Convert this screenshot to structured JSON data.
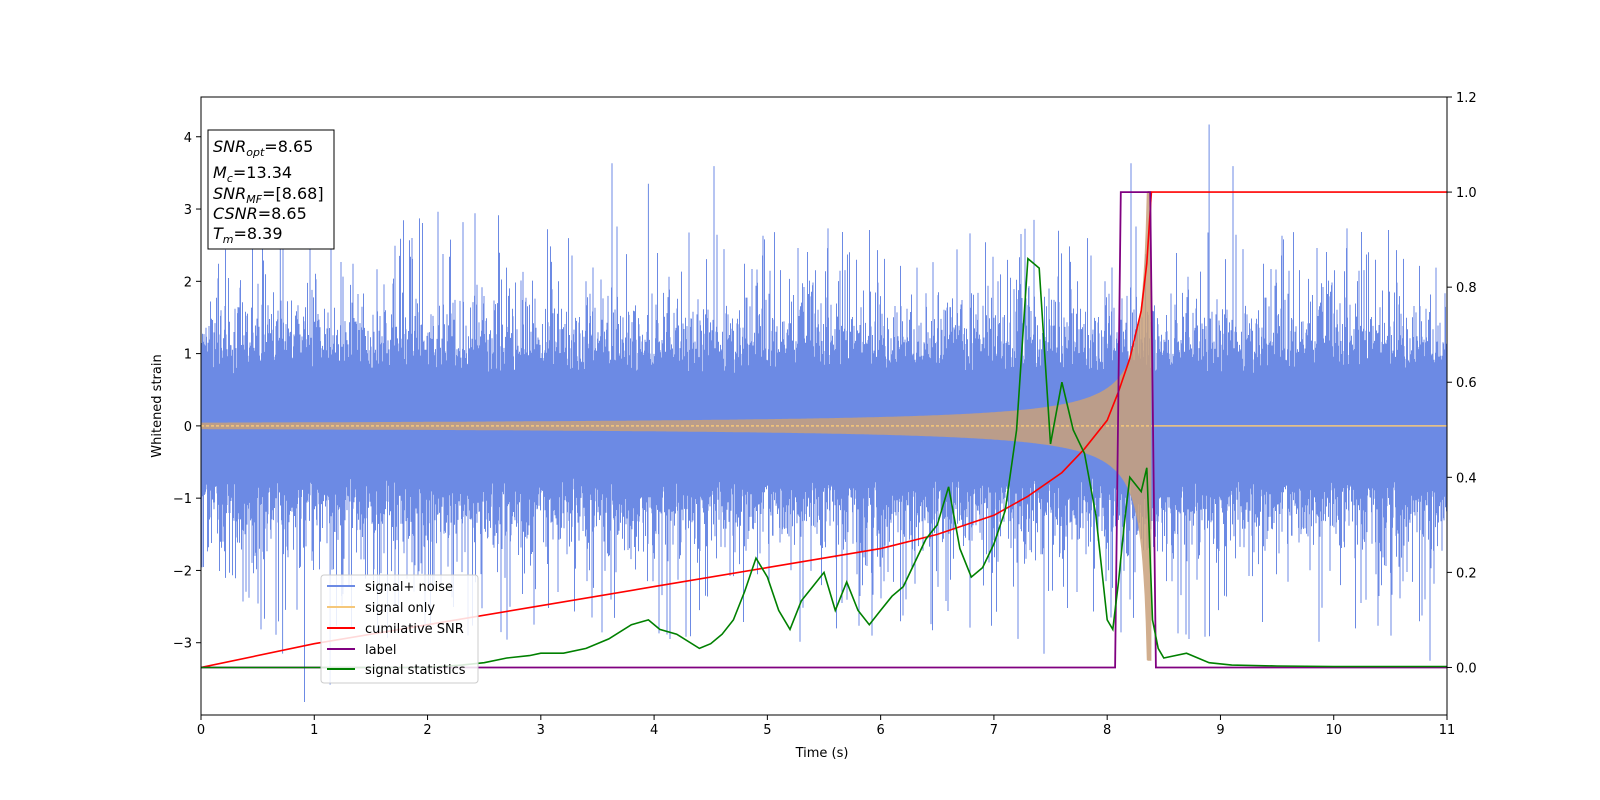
{
  "chart_data": {
    "type": "line",
    "xlabel": "Time (s)",
    "ylabel": "Whitened strain",
    "xlim": [
      0,
      11
    ],
    "ylim_left": [
      -4,
      4.55
    ],
    "ylim_right": [
      -0.1,
      1.2
    ],
    "xticks": [
      "0",
      "1",
      "2",
      "3",
      "4",
      "5",
      "6",
      "7",
      "8",
      "9",
      "10",
      "11"
    ],
    "yticks_left": [
      "−3",
      "−2",
      "−1",
      "0",
      "1",
      "2",
      "3",
      "4"
    ],
    "yticks_right": [
      "0.0",
      "0.2",
      "0.4",
      "0.6",
      "0.8",
      "1.0",
      "1.2"
    ],
    "info_box": {
      "snr_opt": {
        "base": "SNR",
        "sub": "opt",
        "value": "=8.65"
      },
      "mc": {
        "base": "M",
        "sub": "c",
        "value": "=13.34"
      },
      "snr_mf": {
        "base": "SNR",
        "sub": "MF",
        "value": "=[8.68]"
      },
      "csnr": {
        "base": "CSNR",
        "value": "=8.65"
      },
      "tm": {
        "base": "T",
        "sub": "m",
        "value": "=8.39"
      }
    },
    "legend": [
      "signal+ noise",
      "signal only",
      "cumilative SNR",
      "label",
      "signal statistics"
    ],
    "legend_placement": "lower-left",
    "colors": {
      "noise": "#6c8ae4",
      "signal": "#f5c77a",
      "signal_fill": "#c9a07a",
      "csnr": "#ff0000",
      "label": "#800080",
      "stats": "#008000"
    },
    "series": [
      {
        "name": "signal+ noise",
        "axis": "left",
        "noise_band": [
          -1.3,
          1.3
        ],
        "noise_peak_max": 4.17,
        "noise_peak_min": -3.58
      },
      {
        "name": "signal only",
        "axis": "left",
        "chirp_end": 8.39,
        "amplitude_at_end": 3.25
      },
      {
        "name": "cumilative SNR",
        "axis": "right",
        "x": [
          0,
          1,
          2,
          3,
          4,
          5,
          6,
          6.5,
          7,
          7.3,
          7.6,
          7.8,
          8.0,
          8.1,
          8.2,
          8.3,
          8.35,
          8.39,
          11
        ],
        "y": [
          0.0,
          0.05,
          0.09,
          0.13,
          0.17,
          0.21,
          0.25,
          0.28,
          0.32,
          0.36,
          0.41,
          0.46,
          0.52,
          0.58,
          0.65,
          0.75,
          0.85,
          1.0,
          1.0
        ]
      },
      {
        "name": "label",
        "axis": "right",
        "x": [
          0,
          8.07,
          8.12,
          8.38,
          8.43,
          11
        ],
        "y": [
          0,
          0,
          1,
          1,
          0,
          0
        ]
      },
      {
        "name": "signal statistics",
        "axis": "right",
        "x": [
          0,
          0.5,
          1,
          1.5,
          2,
          2.3,
          2.5,
          2.7,
          2.9,
          3.0,
          3.2,
          3.4,
          3.6,
          3.8,
          3.95,
          4.05,
          4.2,
          4.4,
          4.5,
          4.6,
          4.7,
          4.8,
          4.9,
          5.0,
          5.1,
          5.2,
          5.3,
          5.4,
          5.5,
          5.6,
          5.7,
          5.8,
          5.9,
          6.0,
          6.1,
          6.2,
          6.3,
          6.4,
          6.5,
          6.6,
          6.7,
          6.8,
          6.9,
          7.0,
          7.1,
          7.2,
          7.3,
          7.4,
          7.5,
          7.6,
          7.7,
          7.8,
          7.9,
          8.0,
          8.05,
          8.1,
          8.15,
          8.2,
          8.3,
          8.35,
          8.4,
          8.45,
          8.5,
          8.7,
          8.9,
          9.1,
          9.5,
          10,
          11
        ],
        "y": [
          0.0,
          0.0,
          0.0,
          0.0,
          0.0,
          0.005,
          0.01,
          0.02,
          0.025,
          0.03,
          0.03,
          0.04,
          0.06,
          0.09,
          0.1,
          0.08,
          0.07,
          0.04,
          0.05,
          0.07,
          0.1,
          0.16,
          0.23,
          0.19,
          0.12,
          0.08,
          0.14,
          0.17,
          0.2,
          0.12,
          0.18,
          0.12,
          0.09,
          0.12,
          0.15,
          0.17,
          0.22,
          0.27,
          0.3,
          0.38,
          0.25,
          0.19,
          0.21,
          0.26,
          0.33,
          0.5,
          0.86,
          0.84,
          0.47,
          0.6,
          0.5,
          0.45,
          0.32,
          0.1,
          0.08,
          0.18,
          0.3,
          0.4,
          0.37,
          0.42,
          0.1,
          0.04,
          0.02,
          0.03,
          0.01,
          0.005,
          0.003,
          0.002,
          0.002
        ]
      }
    ]
  }
}
